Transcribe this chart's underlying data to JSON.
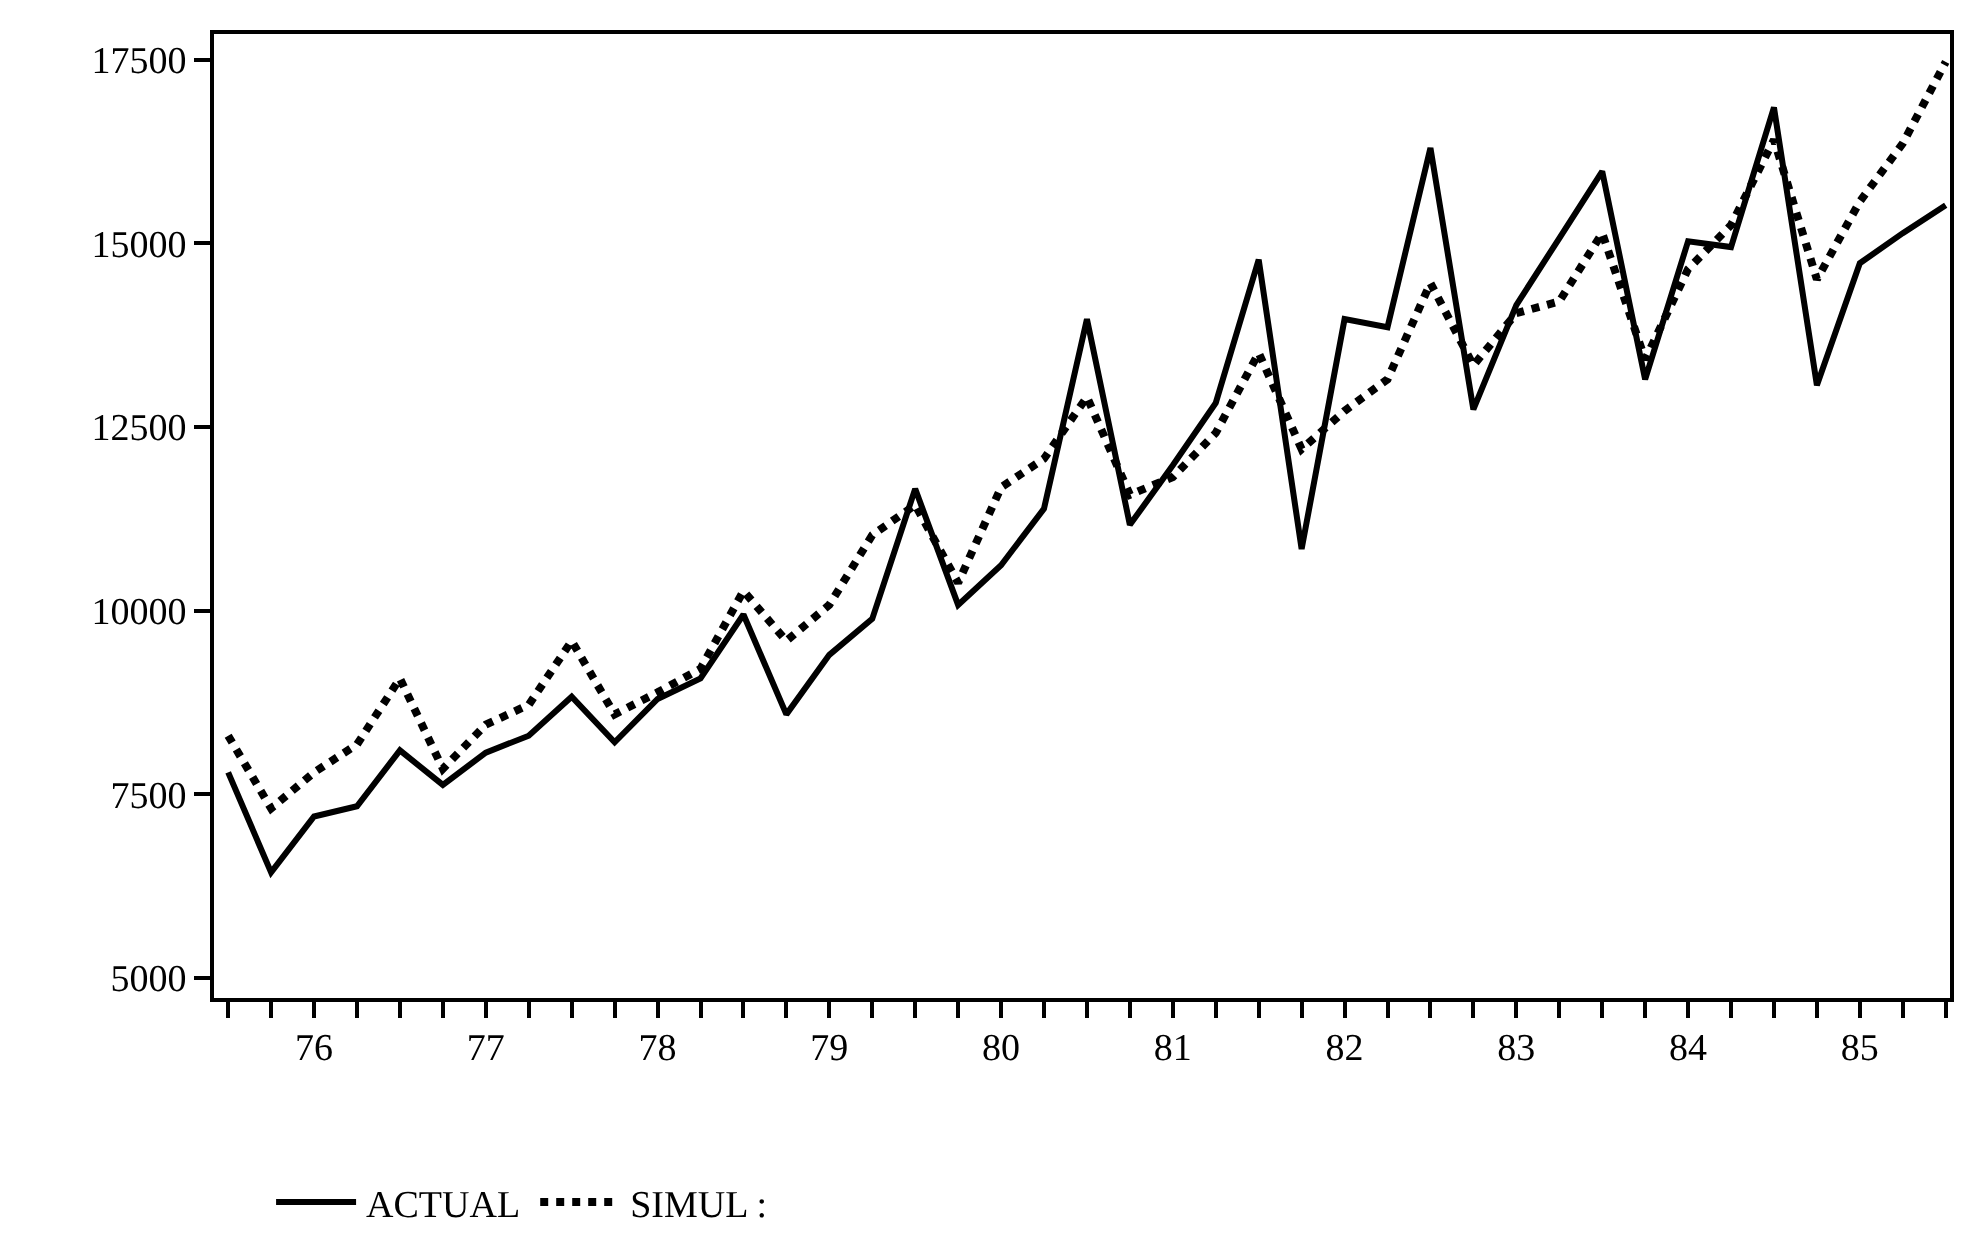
{
  "chart_data": {
    "type": "line",
    "categories": [
      null,
      null,
      "76",
      null,
      null,
      null,
      "77",
      null,
      null,
      null,
      "78",
      null,
      null,
      null,
      "79",
      null,
      null,
      null,
      "80",
      null,
      null,
      null,
      "81",
      null,
      null,
      null,
      "82",
      null,
      null,
      null,
      "83",
      null,
      null,
      null,
      "84",
      null,
      null,
      null,
      "85",
      null,
      null
    ],
    "series": [
      {
        "name": "ACTUAL",
        "color": "#000000",
        "line_style": "solid",
        "values": [
          7800,
          6440,
          7200,
          7340,
          8100,
          7630,
          8070,
          8300,
          8830,
          8210,
          8800,
          9080,
          9950,
          8590,
          9400,
          9890,
          11660,
          10080,
          10620,
          11390,
          13970,
          11170,
          11980,
          12830,
          14780,
          10840,
          13970,
          13860,
          16300,
          12740,
          14160,
          15070,
          15980,
          13150,
          15030,
          14950,
          16850,
          13070,
          14730,
          15140,
          15520
        ]
      },
      {
        "name": "SIMUL :",
        "color": "#000000",
        "line_style": "dotted",
        "values": [
          8300,
          7310,
          7800,
          8180,
          9080,
          7850,
          8450,
          8720,
          9590,
          8590,
          8890,
          9210,
          10270,
          9590,
          10080,
          11030,
          11440,
          10380,
          11680,
          12070,
          12910,
          11580,
          11820,
          12420,
          13510,
          12200,
          12720,
          13150,
          14460,
          13340,
          14050,
          14210,
          15140,
          13420,
          14650,
          15250,
          16410,
          14510,
          15570,
          16360,
          17470
        ]
      }
    ],
    "ylim": [
      4730,
      17850
    ],
    "yticks": [
      5000,
      7500,
      10000,
      12500,
      15000,
      17500
    ],
    "grid": false,
    "legend": "bottom left"
  }
}
